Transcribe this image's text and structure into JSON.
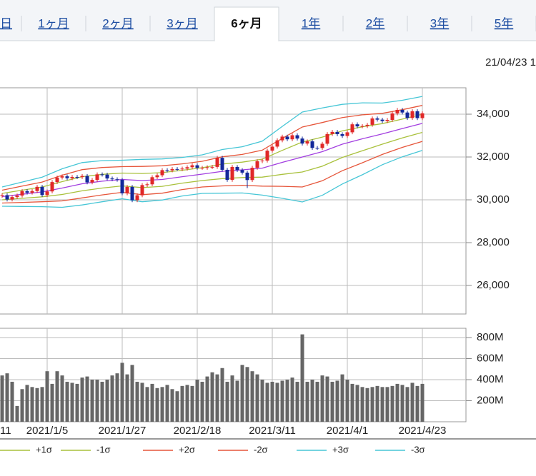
{
  "tabs": [
    "日",
    "1ヶ月",
    "2ヶ月",
    "3ヶ月",
    "6ヶ月",
    "1年",
    "2年",
    "3年",
    "5年"
  ],
  "selected_tab": 4,
  "timestamp": "21/04/23 1",
  "chart_data": {
    "type": "candlestick",
    "categories": [
      "11",
      null,
      null,
      null,
      null,
      null,
      null,
      null,
      null,
      "2021/1/5",
      null,
      null,
      null,
      null,
      null,
      null,
      null,
      null,
      null,
      null,
      null,
      null,
      null,
      null,
      "2021/1/27",
      null,
      null,
      null,
      null,
      null,
      null,
      null,
      null,
      null,
      null,
      null,
      null,
      null,
      null,
      "2021/2/18",
      null,
      null,
      null,
      null,
      null,
      null,
      null,
      null,
      null,
      null,
      null,
      null,
      null,
      null,
      "2021/3/11",
      null,
      null,
      null,
      null,
      null,
      null,
      null,
      null,
      null,
      null,
      null,
      null,
      null,
      null,
      "2021/4/1",
      null,
      null,
      null,
      null,
      null,
      null,
      null,
      null,
      null,
      null,
      null,
      null,
      null,
      null,
      "2021/4/23"
    ],
    "open": [
      30180,
      30216,
      30015,
      30129,
      30200,
      30404,
      30335,
      30409,
      30606,
      30223,
      30392,
      30829,
      31041,
      31098,
      31008,
      31068,
      31061,
      31113,
      30814,
      30930,
      31188,
      31176,
      30997,
      30960,
      30937,
      30303,
      30603,
      29983,
      30212,
      30688,
      30724,
      31056,
      31148,
      31386,
      31375,
      31438,
      31431,
      31458,
      31523,
      31613,
      31494,
      31494,
      31522,
      31537,
      31962,
      31402,
      30932,
      31535,
      31391,
      31270,
      30924,
      31496,
      31802,
      31832,
      32297,
      32485,
      32779,
      32953,
      32826,
      33015,
      32862,
      32628,
      32731,
      32423,
      32420,
      32619,
      33072,
      33171,
      33066,
      32982,
      33153,
      33527,
      33430,
      33446,
      33503,
      33801,
      33745,
      33677,
      33730,
      34036,
      34200,
      34078,
      33821,
      34137,
      33815
    ],
    "high": [
      30306,
      30306,
      30219,
      30290,
      30494,
      30494,
      30499,
      30696,
      30696,
      30482,
      30919,
      31131,
      31188,
      31188,
      31158,
      31158,
      31203,
      31203,
      31020,
      31278,
      31278,
      31266,
      31087,
      31050,
      31027,
      30693,
      30693,
      30302,
      30778,
      30814,
      31146,
      31238,
      31476,
      31476,
      31528,
      31528,
      31548,
      31613,
      31703,
      31703,
      31584,
      31612,
      31627,
      32052,
      32052,
      31492,
      31625,
      31625,
      31481,
      31360,
      31586,
      31892,
      31922,
      32387,
      32575,
      32869,
      33043,
      33043,
      33105,
      33105,
      32952,
      32821,
      32821,
      32513,
      32709,
      33162,
      33261,
      33261,
      33156,
      33243,
      33617,
      33617,
      33536,
      33593,
      33891,
      33891,
      33835,
      33820,
      34126,
      34290,
      34290,
      34168,
      34227,
      34227,
      34133
    ],
    "low": [
      30090,
      29925,
      29925,
      30039,
      30110,
      30245,
      30245,
      30319,
      30133,
      30133,
      30302,
      30739,
      30951,
      30918,
      30918,
      30971,
      30971,
      30724,
      30724,
      30840,
      31086,
      30907,
      30870,
      30847,
      30213,
      30213,
      29893,
      29893,
      30122,
      30598,
      30634,
      30966,
      31058,
      31285,
      31285,
      31341,
      31341,
      31368,
      31433,
      31404,
      31404,
      31404,
      31432,
      31447,
      31312,
      30842,
      30842,
      31301,
      31180,
      30550,
      30834,
      31406,
      31712,
      31742,
      32207,
      32395,
      32689,
      32736,
      32736,
      32772,
      32538,
      32538,
      32333,
      32330,
      32330,
      32529,
      32982,
      32976,
      32892,
      32892,
      33063,
      33340,
      33340,
      33356,
      33413,
      33655,
      33587,
      33587,
      33640,
      33946,
      33988,
      33731,
      33731,
      33725,
      33725
    ],
    "close": [
      30216,
      30015,
      30129,
      30200,
      30404,
      30335,
      30409,
      30606,
      30223,
      30392,
      30829,
      31041,
      31098,
      31008,
      31068,
      31061,
      31113,
      30814,
      30930,
      31188,
      31176,
      30997,
      30960,
      30937,
      30303,
      30603,
      29983,
      30212,
      30688,
      30724,
      31056,
      31148,
      31386,
      31375,
      31438,
      31431,
      31458,
      31523,
      31613,
      31494,
      31494,
      31522,
      31537,
      31962,
      31402,
      30932,
      31535,
      31391,
      31270,
      30924,
      31496,
      31802,
      31832,
      32297,
      32485,
      32779,
      32953,
      32826,
      33015,
      32862,
      32628,
      32731,
      32423,
      32420,
      32619,
      33072,
      33171,
      33066,
      32982,
      33153,
      33527,
      33430,
      33446,
      33503,
      33801,
      33745,
      33677,
      33730,
      34036,
      34200,
      34078,
      33821,
      34137,
      33815,
      34043
    ],
    "up_color": "#e02828",
    "down_color": "#13289a",
    "ylim": [
      24667,
      35233
    ],
    "yticks": [
      {
        "value": 26000,
        "label": "26,000"
      },
      {
        "value": 28000,
        "label": "28,000"
      },
      {
        "value": 30000,
        "label": "30,000"
      },
      {
        "value": 32000,
        "label": "32,000"
      },
      {
        "value": 34000,
        "label": "34,000"
      }
    ],
    "grid": true,
    "lines": {
      "x": [
        0,
        4,
        8,
        12,
        16,
        20,
        24,
        28,
        32,
        36,
        40,
        44,
        48,
        52,
        56,
        60,
        64,
        68,
        72,
        76,
        80,
        84
      ],
      "series": [
        {
          "color": "#a23ee0",
          "values": [
            30150,
            30260,
            30370,
            30550,
            30750,
            30870,
            30950,
            30900,
            30950,
            31080,
            31200,
            31330,
            31400,
            31480,
            31750,
            32000,
            32250,
            32600,
            32850,
            33080,
            33330,
            33570
          ]
        },
        {
          "name": "+1σ",
          "color": "#a9c13c",
          "values": [
            30300,
            30450,
            30600,
            30850,
            31080,
            31190,
            31250,
            31230,
            31270,
            31380,
            31500,
            31670,
            31760,
            31900,
            32310,
            32700,
            32930,
            33220,
            33410,
            33560,
            33770,
            33990
          ]
        },
        {
          "name": "-1σ",
          "color": "#a9c13c",
          "values": [
            30000,
            30070,
            30140,
            30250,
            30420,
            30550,
            30650,
            30570,
            30630,
            30780,
            30900,
            30990,
            31040,
            31060,
            31190,
            31300,
            31570,
            31980,
            32290,
            32600,
            32890,
            33150
          ]
        },
        {
          "name": "+2σ",
          "color": "#e6553a",
          "values": [
            30450,
            30640,
            30830,
            31150,
            31410,
            31510,
            31550,
            31560,
            31590,
            31680,
            31800,
            32010,
            32120,
            32320,
            32870,
            33400,
            33610,
            33840,
            33970,
            34040,
            34210,
            34410
          ]
        },
        {
          "name": "-2σ",
          "color": "#e6553a",
          "values": [
            29850,
            29880,
            29910,
            29950,
            30090,
            30230,
            30350,
            30240,
            30310,
            30480,
            30600,
            30650,
            30680,
            30640,
            30630,
            30600,
            30890,
            31360,
            31730,
            32120,
            32450,
            32730
          ]
        },
        {
          "name": "+3σ",
          "color": "#46c6d6",
          "values": [
            30600,
            30830,
            31060,
            31450,
            31740,
            31830,
            31850,
            31890,
            31910,
            31980,
            32100,
            32350,
            32480,
            32740,
            33430,
            34100,
            34290,
            34460,
            34530,
            34520,
            34650,
            34830
          ]
        },
        {
          "name": "-3σ",
          "color": "#46c6d6",
          "values": [
            29700,
            29690,
            29680,
            29650,
            29760,
            29910,
            30050,
            29910,
            29990,
            30180,
            30300,
            30310,
            30320,
            30220,
            30070,
            29900,
            30210,
            30740,
            31170,
            31640,
            32010,
            32310
          ]
        }
      ]
    },
    "volume": {
      "color": "#666666",
      "values": [
        440,
        460,
        380,
        150,
        310,
        350,
        330,
        320,
        330,
        480,
        360,
        480,
        440,
        380,
        370,
        360,
        420,
        430,
        400,
        400,
        380,
        400,
        440,
        460,
        560,
        450,
        540,
        380,
        370,
        330,
        360,
        320,
        330,
        350,
        310,
        290,
        340,
        350,
        340,
        400,
        380,
        430,
        470,
        450,
        510,
        380,
        440,
        390,
        540,
        520,
        480,
        450,
        400,
        370,
        380,
        370,
        390,
        400,
        420,
        380,
        830,
        380,
        400,
        380,
        440,
        430,
        380,
        390,
        450,
        400,
        360,
        350,
        330,
        320,
        330,
        340,
        330,
        330,
        340,
        360,
        350,
        330,
        370,
        340,
        360
      ],
      "ylim": [
        0,
        888
      ],
      "yticks": [
        {
          "value": 200,
          "label": "200M"
        },
        {
          "value": 400,
          "label": "400M"
        },
        {
          "value": 600,
          "label": "600M"
        },
        {
          "value": 800,
          "label": "800M"
        }
      ]
    }
  }
}
